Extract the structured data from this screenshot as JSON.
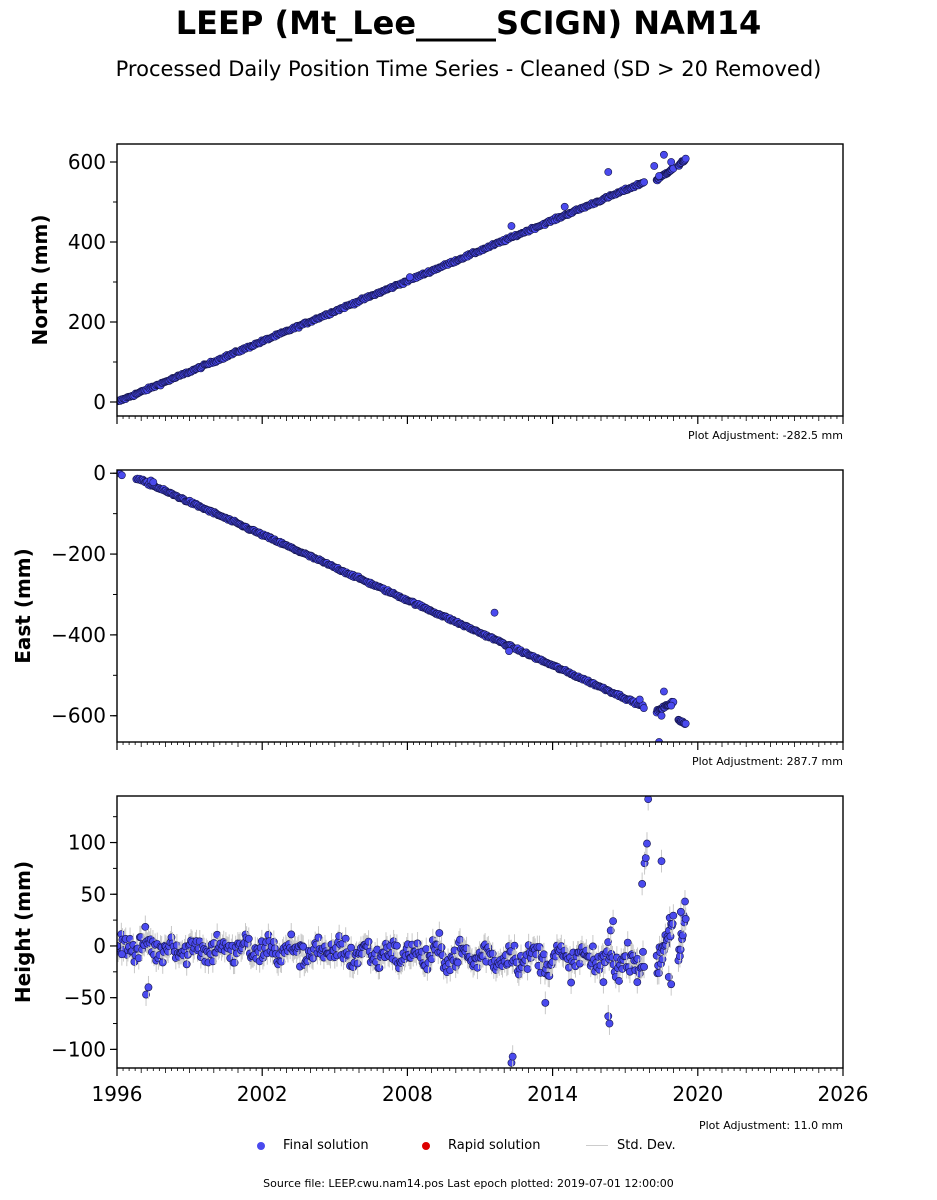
{
  "title": "LEEP (Mt_Lee_____SCIGN) NAM14",
  "subtitle": "Processed Daily Position Time Series - Cleaned (SD > 20 Removed)",
  "colors": {
    "final": "#4a4aee",
    "final_edge": "#14144a",
    "rapid": "#dd0000",
    "std": "#c8c8c8"
  },
  "legend": {
    "final": "Final solution",
    "rapid": "Rapid solution",
    "std": "Std. Dev."
  },
  "footer": "Source file: LEEP.cwu.nam14.pos  Last epoch plotted: 2019-07-01 12:00:00",
  "chart_data": [
    {
      "type": "scatter",
      "ylabel": "North (mm)",
      "adjustment": "Plot Adjustment: -282.5 mm",
      "xlim": [
        1996,
        2026
      ],
      "ylim": [
        -35,
        645
      ],
      "yticks": [
        0,
        200,
        400,
        600
      ],
      "ytick_labels": [
        "0",
        "200",
        "400",
        "600"
      ],
      "trend": [
        [
          1996.0,
          0
        ],
        [
          2017.8,
          550
        ]
      ],
      "gaps": [
        [
          2017.9,
          2018.3
        ],
        [
          2019.0,
          2019.2
        ]
      ],
      "late_segments": [
        [
          2018.3,
          2019.0,
          555,
          585
        ],
        [
          2019.2,
          2019.5,
          590,
          608
        ]
      ],
      "outliers": [
        [
          2018.6,
          618
        ],
        [
          2018.2,
          590
        ],
        [
          2016.3,
          575
        ],
        [
          2014.5,
          488
        ],
        [
          2012.3,
          440
        ],
        [
          2008.1,
          312
        ],
        [
          2018.9,
          600
        ],
        [
          2018.4,
          565
        ]
      ]
    },
    {
      "type": "scatter",
      "ylabel": "East (mm)",
      "adjustment": "Plot Adjustment: 287.7 mm",
      "xlim": [
        1996,
        2026
      ],
      "ylim": [
        -665,
        8
      ],
      "yticks": [
        0,
        -200,
        -400,
        -600
      ],
      "ytick_labels": [
        "0",
        "−200",
        "−400",
        "−600"
      ],
      "trend": [
        [
          1996.8,
          -12
        ],
        [
          2017.8,
          -578
        ]
      ],
      "gaps": [
        [
          2017.9,
          2018.3
        ],
        [
          2019.0,
          2019.2
        ]
      ],
      "late_segments": [
        [
          2018.3,
          2019.0,
          -590,
          -565
        ],
        [
          2019.2,
          2019.5,
          -612,
          -620
        ]
      ],
      "outliers": [
        [
          1996.1,
          0
        ],
        [
          1996.2,
          -5
        ],
        [
          1997.4,
          -18
        ],
        [
          1997.5,
          -22
        ],
        [
          2011.6,
          -345
        ],
        [
          2018.6,
          -540
        ],
        [
          2018.4,
          -665
        ],
        [
          2018.5,
          -600
        ],
        [
          2017.6,
          -560
        ],
        [
          2018.9,
          -575
        ],
        [
          2012.2,
          -440
        ]
      ]
    },
    {
      "type": "scatter",
      "ylabel": "Height (mm)",
      "adjustment": "Plot Adjustment: 11.0 mm",
      "xlim": [
        1996,
        2026
      ],
      "ylim": [
        -118,
        145
      ],
      "yticks": [
        100,
        50,
        0,
        -50,
        -100
      ],
      "ytick_labels": [
        "100",
        "50",
        "0",
        "−50",
        "−100"
      ],
      "trend": [
        [
          1996.0,
          0
        ],
        [
          2017.8,
          -15
        ]
      ],
      "gaps": [
        [
          2017.9,
          2018.3
        ],
        [
          2019.0,
          2019.2
        ]
      ],
      "late_segments": [
        [
          2018.3,
          2019.0,
          -20,
          30
        ],
        [
          2019.2,
          2019.5,
          -20,
          30
        ]
      ],
      "outliers": [
        [
          1996.0,
          0
        ],
        [
          1996.2,
          -8
        ],
        [
          1997.2,
          -47
        ],
        [
          1997.3,
          -40
        ],
        [
          2012.3,
          -113
        ],
        [
          2012.35,
          -107
        ],
        [
          2013.7,
          -55
        ],
        [
          2016.1,
          -35
        ],
        [
          2016.3,
          -68
        ],
        [
          2016.35,
          -75
        ],
        [
          2016.4,
          15
        ],
        [
          2016.5,
          24
        ],
        [
          2017.5,
          -35
        ],
        [
          2017.7,
          60
        ],
        [
          2017.8,
          80
        ],
        [
          2017.85,
          85
        ],
        [
          2017.9,
          99
        ],
        [
          2017.95,
          142
        ],
        [
          2018.5,
          82
        ],
        [
          2018.8,
          -30
        ],
        [
          2018.9,
          -37
        ],
        [
          2019.3,
          33
        ]
      ]
    }
  ],
  "xaxis": {
    "xlim": [
      1996,
      2026
    ],
    "ticks": [
      1996,
      2002,
      2008,
      2014,
      2020,
      2026
    ],
    "tick_labels": [
      "1996",
      "2002",
      "2008",
      "2014",
      "2020",
      "2026"
    ]
  }
}
